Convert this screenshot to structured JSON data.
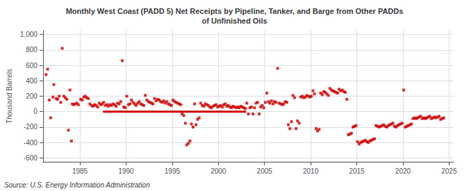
{
  "chart_data": {
    "type": "scatter",
    "title": "Monthly West Coast (PADD 5) Net Receipts by Pipeline, Tanker, and Barge from Other PADDs\nof Unfinished Oils",
    "ylabel": "Thousand Barrels",
    "annotations": [
      "Source: U.S. Energy Information Administration"
    ],
    "xlim": [
      1981.0,
      2025.5
    ],
    "ylim": [
      -650,
      1050
    ],
    "xticks": [
      1985,
      1990,
      1995,
      2000,
      2005,
      2010,
      2015,
      2020,
      2025
    ],
    "yticks": [
      -600,
      -400,
      -200,
      0,
      200,
      400,
      600,
      {
        "value": 800,
        "label": "800"
      },
      {
        "value": 1000,
        "label": "1,000"
      }
    ],
    "grid": true,
    "series": [
      {
        "type": "scatter",
        "color": "#cc0000",
        "marker": "square",
        "x": [
          1981.33,
          1981.5,
          1981.67,
          1981.83,
          1982.08,
          1982.17,
          1982.42,
          1982.58,
          1982.75,
          1982.92,
          1983.08,
          1983.25,
          1983.42,
          1983.58,
          1983.75,
          1983.92,
          1984.08,
          1984.17,
          1984.33,
          1984.5,
          1984.67,
          1984.83,
          1985.08,
          1985.25,
          1985.42,
          1985.58,
          1985.75,
          1985.92,
          1986.08,
          1986.25,
          1986.42,
          1986.58,
          1986.75,
          1986.92,
          1987.08,
          1987.25,
          1987.42,
          1987.58,
          1987.75,
          1987.92,
          1988.08,
          1988.25,
          1988.42,
          1988.58,
          1988.75,
          1988.92,
          1989.08,
          1989.25,
          1989.42,
          1989.58,
          1989.75,
          1989.92,
          1990.08,
          1990.25,
          1990.42,
          1990.58,
          1990.75,
          1990.92,
          1991.08,
          1991.25,
          1991.42,
          1991.58,
          1991.75,
          1991.92,
          1992.08,
          1992.25,
          1992.42,
          1992.58,
          1992.75,
          1992.92,
          1993.08,
          1993.25,
          1993.42,
          1993.58,
          1993.75,
          1993.92,
          1994.08,
          1994.25,
          1994.42,
          1994.58,
          1994.75,
          1994.92,
          1995.08,
          1995.25,
          1995.42,
          1995.58,
          1995.75,
          1995.92,
          1996.08,
          1996.25,
          1996.42,
          1996.58,
          1996.75,
          1996.92,
          1997.08,
          1997.25,
          1997.42,
          1997.58,
          1997.75,
          1997.92,
          1998.08,
          1998.25,
          1998.42,
          1998.58,
          1998.75,
          1998.92,
          1999.08,
          1999.25,
          1999.42,
          1999.58,
          1999.75,
          1999.92,
          2000.08,
          2000.25,
          2000.42,
          2000.58,
          2000.75,
          2000.92,
          2001.08,
          2001.25,
          2001.42,
          2001.58,
          2001.75,
          2001.92,
          2002.08,
          2002.25,
          2002.42,
          2002.58,
          2002.75,
          2002.92,
          2003.08,
          2003.25,
          2003.42,
          2003.58,
          2003.75,
          2003.92,
          2004.08,
          2004.25,
          2004.42,
          2004.58,
          2004.75,
          2004.92,
          2005.08,
          2005.25,
          2005.42,
          2005.58,
          2005.75,
          2005.92,
          2006.08,
          2006.25,
          2006.42,
          2006.58,
          2006.75,
          2006.92,
          2007.08,
          2007.25,
          2007.42,
          2007.58,
          2007.75,
          2007.92,
          2008.08,
          2008.25,
          2008.42,
          2008.58,
          2008.75,
          2008.92,
          2009.08,
          2009.25,
          2009.42,
          2009.58,
          2009.75,
          2009.92,
          2010.08,
          2010.25,
          2010.42,
          2010.58,
          2010.75,
          2010.92,
          2011.08,
          2011.25,
          2011.42,
          2011.58,
          2011.75,
          2011.92,
          2012.08,
          2012.25,
          2012.42,
          2012.58,
          2012.75,
          2012.92,
          2013.08,
          2013.25,
          2013.42,
          2013.58,
          2013.75,
          2013.92,
          2014.08,
          2014.25,
          2014.42,
          2014.58,
          2014.75,
          2014.92,
          2015.08,
          2015.25,
          2015.42,
          2015.58,
          2015.75,
          2015.92,
          2016.08,
          2016.25,
          2016.42,
          2016.58,
          2016.75,
          2016.92,
          2017.08,
          2017.25,
          2017.42,
          2017.58,
          2017.75,
          2017.92,
          2018.08,
          2018.25,
          2018.42,
          2018.58,
          2018.75,
          2018.92,
          2019.08,
          2019.25,
          2019.42,
          2019.58,
          2019.75,
          2019.92,
          2020.08,
          2020.25,
          2020.42,
          2020.58,
          2020.75,
          2020.92,
          2021.08,
          2021.25,
          2021.42,
          2021.58,
          2021.75,
          2021.92,
          2022.08,
          2022.25,
          2022.42,
          2022.58,
          2022.75,
          2022.92,
          2023.08,
          2023.25,
          2023.42,
          2023.58,
          2023.75,
          2023.92,
          2024.08,
          2024.25,
          2024.42
        ],
        "values": [
          480,
          550,
          150,
          -80,
          190,
          350,
          170,
          160,
          200,
          120,
          820,
          200,
          180,
          160,
          -240,
          280,
          -380,
          100,
          90,
          100,
          110,
          90,
          160,
          150,
          190,
          200,
          180,
          170,
          100,
          80,
          70,
          90,
          80,
          60,
          110,
          90,
          100,
          120,
          80,
          90,
          70,
          90,
          80,
          100,
          90,
          70,
          110,
          100,
          130,
          660,
          60,
          50,
          200,
          90,
          100,
          150,
          120,
          100,
          80,
          110,
          130,
          100,
          90,
          80,
          210,
          150,
          130,
          120,
          110,
          100,
          170,
          140,
          160,
          150,
          130,
          120,
          140,
          110,
          130,
          100,
          90,
          80,
          150,
          130,
          120,
          110,
          100,
          90,
          -30,
          -50,
          -150,
          -430,
          -410,
          -380,
          -160,
          -200,
          100,
          -170,
          -100,
          -80,
          110,
          80,
          70,
          100,
          90,
          80,
          60,
          50,
          70,
          80,
          90,
          60,
          70,
          80,
          60,
          90,
          100,
          70,
          80,
          60,
          50,
          70,
          60,
          50,
          60,
          50,
          70,
          60,
          50,
          40,
          110,
          -30,
          50,
          60,
          -30,
          50,
          110,
          120,
          -30,
          60,
          80,
          50,
          120,
          240,
          130,
          110,
          140,
          100,
          130,
          120,
          560,
          110,
          100,
          90,
          100,
          130,
          120,
          -170,
          -220,
          -130,
          210,
          180,
          -220,
          -120,
          -150,
          190,
          200,
          180,
          190,
          210,
          200,
          190,
          200,
          270,
          230,
          -220,
          -250,
          -230,
          240,
          220,
          260,
          250,
          230,
          210,
          300,
          280,
          270,
          260,
          250,
          240,
          290,
          270,
          280,
          260,
          250,
          160,
          -300,
          -290,
          -280,
          -200,
          -190,
          -180,
          -390,
          -420,
          -400,
          -390,
          -380,
          -370,
          -390,
          -400,
          -380,
          -370,
          -360,
          -350,
          -180,
          -190,
          -200,
          -190,
          -180,
          -170,
          -190,
          -200,
          -180,
          -170,
          -160,
          -150,
          -190,
          -200,
          -180,
          -170,
          -160,
          -150,
          280,
          -200,
          -190,
          -180,
          -170,
          -160,
          -90,
          -80,
          -90,
          -80,
          -70,
          -60,
          -90,
          -80,
          -90,
          -80,
          -70,
          -60,
          -90,
          -80,
          -70,
          -80,
          -70,
          -60,
          -100,
          -90,
          -80
        ]
      },
      {
        "type": "line",
        "color": "#cc0000",
        "x": [
          1987.5,
          2003.0
        ],
        "values": [
          0,
          0
        ]
      }
    ]
  }
}
